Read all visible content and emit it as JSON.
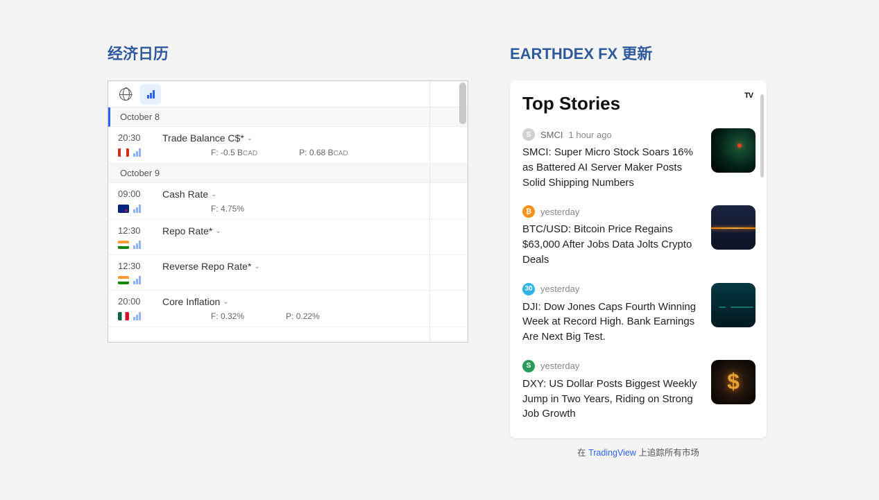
{
  "left": {
    "title": "经济日历",
    "dates": [
      {
        "label": "October 8",
        "active": true
      },
      {
        "label": "October 9",
        "active": false
      }
    ],
    "events": [
      {
        "dateIndex": 0,
        "time": "20:30",
        "name": "Trade Balance C$*",
        "flag": "ca",
        "forecast_label": "F:",
        "forecast_value": "-0.5 B",
        "forecast_unit": "CAD",
        "prev_label": "P:",
        "prev_value": "0.68 B",
        "prev_unit": "CAD"
      },
      {
        "dateIndex": 1,
        "time": "09:00",
        "name": "Cash Rate",
        "flag": "nz",
        "forecast_label": "F:",
        "forecast_value": "4.75%",
        "forecast_unit": "",
        "prev_label": "",
        "prev_value": "",
        "prev_unit": ""
      },
      {
        "dateIndex": 1,
        "time": "12:30",
        "name": "Repo Rate*",
        "flag": "in",
        "forecast_label": "",
        "forecast_value": "",
        "forecast_unit": "",
        "prev_label": "",
        "prev_value": "",
        "prev_unit": ""
      },
      {
        "dateIndex": 1,
        "time": "12:30",
        "name": "Reverse Repo Rate*",
        "flag": "in",
        "forecast_label": "",
        "forecast_value": "",
        "forecast_unit": "",
        "prev_label": "",
        "prev_value": "",
        "prev_unit": ""
      },
      {
        "dateIndex": 1,
        "time": "20:00",
        "name": "Core Inflation",
        "flag": "mx",
        "forecast_label": "F:",
        "forecast_value": "0.32%",
        "forecast_unit": "",
        "prev_label": "P:",
        "prev_value": "0.22%",
        "prev_unit": ""
      }
    ]
  },
  "right": {
    "title": "EARTHDEX FX 更新",
    "news_title": "Top Stories",
    "footer_prefix": "在 ",
    "footer_link": "TradingView",
    "footer_suffix": " 上追踪所有市场",
    "stories": [
      {
        "badge_text": "S",
        "badge_color": "#d0d0d0",
        "symbol": "SMCI",
        "time": "1 hour ago",
        "headline": "SMCI: Super Micro Stock Soars 16% as Battered AI Server Maker Posts Solid Shipping Numbers",
        "thumb": "thumb-1"
      },
      {
        "badge_text": "₿",
        "badge_color": "#f7931a",
        "symbol": "",
        "time": "yesterday",
        "headline": "BTC/USD: Bitcoin Price Regains $63,000 After Jobs Data Jolts Crypto Deals",
        "thumb": "thumb-2"
      },
      {
        "badge_text": "30",
        "badge_color": "#2eb5e6",
        "symbol": "",
        "time": "yesterday",
        "headline": "DJI: Dow Jones Caps Fourth Winning Week at Record High. Bank Earnings Are Next Big Test.",
        "thumb": "thumb-3"
      },
      {
        "badge_text": "S",
        "badge_color": "#2a9c5a",
        "symbol": "",
        "time": "yesterday",
        "headline": "DXY: US Dollar Posts Biggest Weekly Jump in Two Years, Riding on Strong Job Growth",
        "thumb": "thumb-4"
      }
    ]
  }
}
